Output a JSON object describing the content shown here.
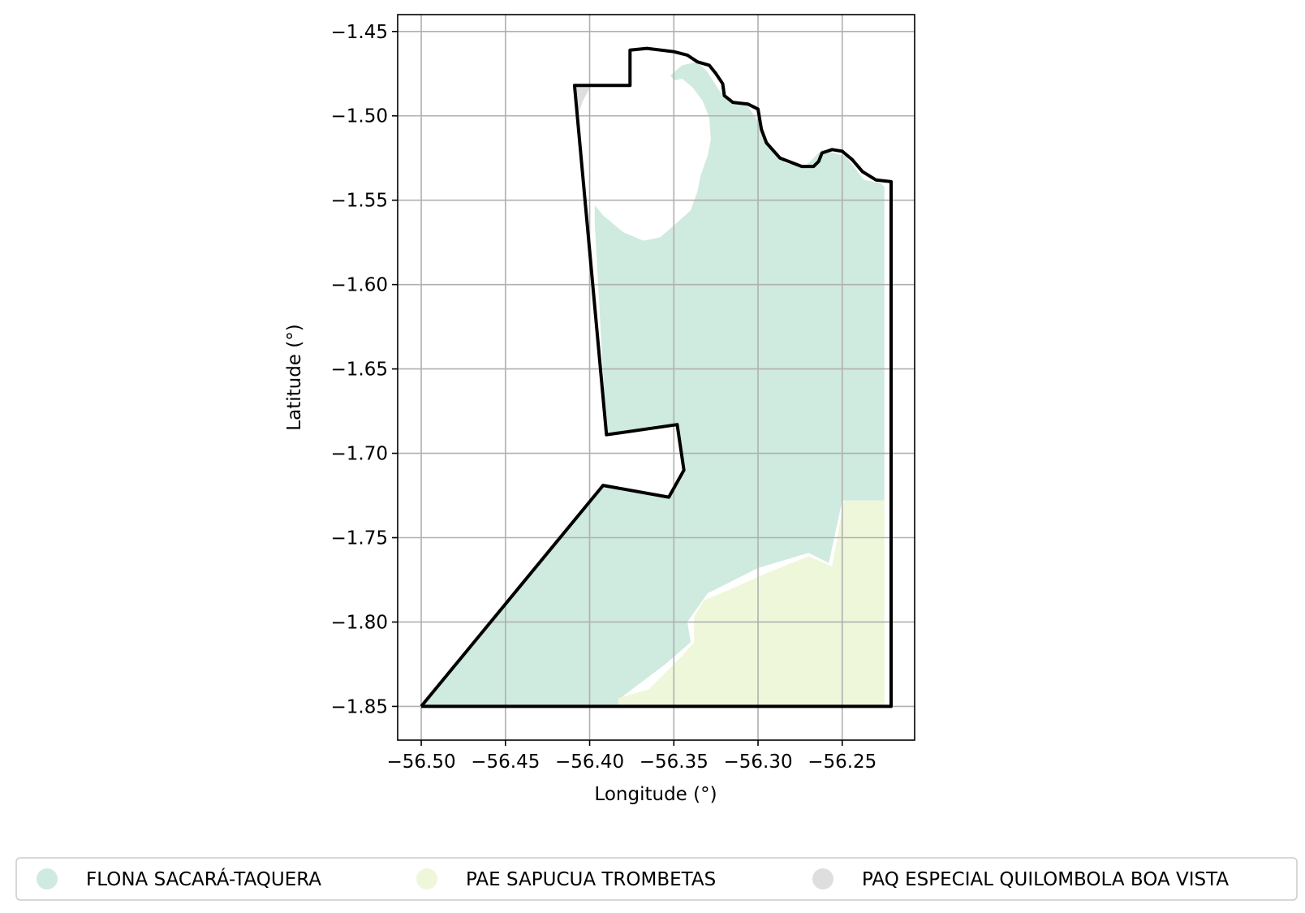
{
  "chart_data": {
    "type": "map",
    "xlabel": "Longitude (°)",
    "ylabel": "Latitude (°)",
    "xlim": [
      -56.514,
      -56.207
    ],
    "ylim": [
      -1.87,
      -1.44
    ],
    "xticks": [
      -56.5,
      -56.45,
      -56.4,
      -56.35,
      -56.3,
      -56.25
    ],
    "xtick_labels": [
      "−56.50",
      "−56.45",
      "−56.40",
      "−56.35",
      "−56.30",
      "−56.25"
    ],
    "yticks": [
      -1.45,
      -1.5,
      -1.55,
      -1.6,
      -1.65,
      -1.7,
      -1.75,
      -1.8,
      -1.85
    ],
    "ytick_labels": [
      "−1.45",
      "−1.50",
      "−1.55",
      "−1.60",
      "−1.65",
      "−1.70",
      "−1.75",
      "−1.80",
      "−1.85"
    ],
    "grid": true,
    "legend_position": "bottom",
    "layers": [
      {
        "name": "FLONA SACARÁ-TAQUERA",
        "color": "#cfeade",
        "polygon": [
          [
            -56.5,
            -1.85
          ],
          [
            -56.392,
            -1.719
          ],
          [
            -56.353,
            -1.726
          ],
          [
            -56.344,
            -1.71
          ],
          [
            -56.348,
            -1.683
          ],
          [
            -56.39,
            -1.689
          ],
          [
            -56.397,
            -1.563
          ],
          [
            -56.397,
            -1.553
          ],
          [
            -56.392,
            -1.559
          ],
          [
            -56.38,
            -1.569
          ],
          [
            -56.368,
            -1.574
          ],
          [
            -56.358,
            -1.572
          ],
          [
            -56.35,
            -1.565
          ],
          [
            -56.34,
            -1.556
          ],
          [
            -56.336,
            -1.545
          ],
          [
            -56.334,
            -1.535
          ],
          [
            -56.33,
            -1.524
          ],
          [
            -56.328,
            -1.514
          ],
          [
            -56.329,
            -1.501
          ],
          [
            -56.333,
            -1.491
          ],
          [
            -56.339,
            -1.483
          ],
          [
            -56.345,
            -1.478
          ],
          [
            -56.35,
            -1.479
          ],
          [
            -56.352,
            -1.476
          ],
          [
            -56.345,
            -1.47
          ],
          [
            -56.336,
            -1.468
          ],
          [
            -56.33,
            -1.474
          ],
          [
            -56.323,
            -1.485
          ],
          [
            -56.317,
            -1.491
          ],
          [
            -56.307,
            -1.493
          ],
          [
            -56.3,
            -1.503
          ],
          [
            -56.295,
            -1.516
          ],
          [
            -56.284,
            -1.528
          ],
          [
            -56.272,
            -1.53
          ],
          [
            -56.262,
            -1.52
          ],
          [
            -56.248,
            -1.524
          ],
          [
            -56.237,
            -1.538
          ],
          [
            -56.227,
            -1.54
          ],
          [
            -56.225,
            -1.542
          ],
          [
            -56.225,
            -1.728
          ],
          [
            -56.25,
            -1.728
          ],
          [
            -56.258,
            -1.765
          ],
          [
            -56.27,
            -1.759
          ],
          [
            -56.3,
            -1.768
          ],
          [
            -56.33,
            -1.783
          ],
          [
            -56.342,
            -1.8
          ],
          [
            -56.34,
            -1.812
          ],
          [
            -56.355,
            -1.825
          ],
          [
            -56.383,
            -1.846
          ],
          [
            -56.383,
            -1.85
          ]
        ]
      },
      {
        "name": "PAE SAPUCUA TROMBETAS",
        "color": "#eef7da",
        "polygon": [
          [
            -56.383,
            -1.85
          ],
          [
            -56.383,
            -1.845
          ],
          [
            -56.365,
            -1.84
          ],
          [
            -56.345,
            -1.82
          ],
          [
            -56.338,
            -1.812
          ],
          [
            -56.338,
            -1.797
          ],
          [
            -56.332,
            -1.787
          ],
          [
            -56.315,
            -1.78
          ],
          [
            -56.295,
            -1.771
          ],
          [
            -56.27,
            -1.761
          ],
          [
            -56.256,
            -1.767
          ],
          [
            -56.249,
            -1.728
          ],
          [
            -56.225,
            -1.728
          ],
          [
            -56.225,
            -1.85
          ]
        ]
      },
      {
        "name": "PAQ ESPECIAL QUILOMBOLA BOA VISTA",
        "color": "#dedede",
        "polygon": [
          [
            -56.409,
            -1.482
          ],
          [
            -56.399,
            -1.482
          ],
          [
            -56.404,
            -1.491
          ],
          [
            -56.407,
            -1.5
          ]
        ]
      }
    ],
    "boundary": [
      [
        -56.5,
        -1.85
      ],
      [
        -56.392,
        -1.719
      ],
      [
        -56.353,
        -1.726
      ],
      [
        -56.344,
        -1.71
      ],
      [
        -56.348,
        -1.683
      ],
      [
        -56.39,
        -1.689
      ],
      [
        -56.409,
        -1.482
      ],
      [
        -56.376,
        -1.482
      ],
      [
        -56.376,
        -1.461
      ],
      [
        -56.366,
        -1.46
      ],
      [
        -56.35,
        -1.462
      ],
      [
        -56.342,
        -1.464
      ],
      [
        -56.336,
        -1.468
      ],
      [
        -56.329,
        -1.47
      ],
      [
        -56.325,
        -1.475
      ],
      [
        -56.321,
        -1.481
      ],
      [
        -56.32,
        -1.488
      ],
      [
        -56.315,
        -1.492
      ],
      [
        -56.306,
        -1.493
      ],
      [
        -56.3,
        -1.496
      ],
      [
        -56.298,
        -1.508
      ],
      [
        -56.295,
        -1.516
      ],
      [
        -56.287,
        -1.525
      ],
      [
        -56.274,
        -1.53
      ],
      [
        -56.267,
        -1.53
      ],
      [
        -56.264,
        -1.527
      ],
      [
        -56.262,
        -1.522
      ],
      [
        -56.256,
        -1.52
      ],
      [
        -56.25,
        -1.521
      ],
      [
        -56.244,
        -1.526
      ],
      [
        -56.238,
        -1.533
      ],
      [
        -56.23,
        -1.538
      ],
      [
        -56.221,
        -1.539
      ],
      [
        -56.221,
        -1.85
      ],
      [
        -56.5,
        -1.85
      ]
    ]
  },
  "legend": {
    "items": [
      {
        "label": "FLONA SACARÁ-TAQUERA",
        "color": "#cfeade"
      },
      {
        "label": "PAE SAPUCUA TROMBETAS",
        "color": "#eef7da"
      },
      {
        "label": "PAQ ESPECIAL QUILOMBOLA BOA VISTA",
        "color": "#dedede"
      }
    ]
  }
}
